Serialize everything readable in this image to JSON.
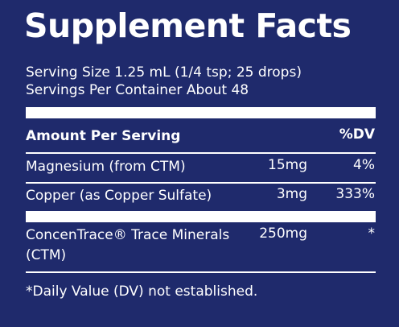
{
  "title": "Supplement Facts",
  "serving_size": "Serving Size 1.25 mL (1/4 tsp; 25 drops)",
  "servings_per_container": "Servings Per Container About 48",
  "table": {
    "header": [
      "Amount Per Serving",
      "%DV"
    ],
    "rows": [
      [
        "Magnesium (from CTM)",
        "15mg",
        "4%"
      ],
      [
        "Copper (as Copper Sulfate)",
        "3mg",
        "333%"
      ],
      [
        "ConcenTrace® Trace Minerals (CTM)",
        "250mg",
        "*"
      ]
    ]
  },
  "footnote": "*Daily Value (DV) not established."
}
